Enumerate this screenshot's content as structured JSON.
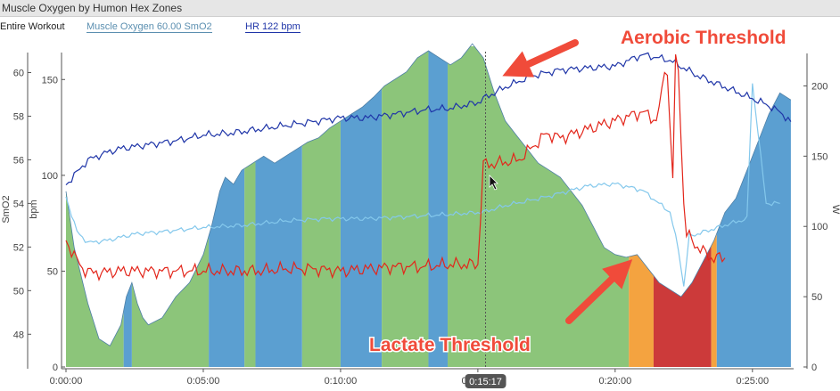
{
  "window_title": "Muscle Oxygen by Humon Hex Zones",
  "legend": {
    "entire": "Entire Workout",
    "muscle_oxygen": "Muscle Oxygen  60.00 SmO2",
    "hr": "HR  122 bpm"
  },
  "cursor_label": "0:15:17",
  "annotations": {
    "aerobic": "Aerobic Threshold",
    "lactate": "Lactate Threshold"
  },
  "colors": {
    "zone_green": "#8cc57a",
    "zone_blue": "#5b9fd1",
    "zone_orange": "#f4a340",
    "zone_red": "#cc3a3a",
    "hr_line": "#1f35a8",
    "smo2_line": "#e3261b",
    "light_line": "#84c8ec",
    "arrow": "#f04b3a"
  },
  "chart_data": {
    "type": "area",
    "x_ticks": [
      "0:00:00",
      "0:05:00",
      "0:10:00",
      "0:15:00",
      "0:20:00",
      "0:25:00"
    ],
    "x_range_min": [
      0,
      26.5
    ],
    "y_left_smo2": {
      "label": "SmO2",
      "ticks": [
        48,
        50,
        52,
        54,
        56,
        58,
        60
      ],
      "range": [
        46.5,
        61
      ]
    },
    "y_left_bpm": {
      "label": "bpm",
      "ticks": [
        0,
        50,
        100,
        150
      ],
      "range": [
        0,
        165
      ]
    },
    "y_right_w": {
      "label": "W",
      "ticks": [
        0,
        50,
        100,
        150,
        200
      ],
      "range": [
        0,
        225
      ]
    },
    "power_area": {
      "x": [
        0,
        0.3,
        0.8,
        1.2,
        1.6,
        2.0,
        2.2,
        2.4,
        2.6,
        2.8,
        3.0,
        3.5,
        4.0,
        4.5,
        5.0,
        5.3,
        5.6,
        5.8,
        6.1,
        6.4,
        6.8,
        7.2,
        7.6,
        8.0,
        8.4,
        8.8,
        9.2,
        9.6,
        10.0,
        10.4,
        10.8,
        11.2,
        11.6,
        12.0,
        12.4,
        12.8,
        13.2,
        13.6,
        14.0,
        14.4,
        14.8,
        15.2,
        15.6,
        16.0,
        16.4,
        16.8,
        17.2,
        17.6,
        18.0,
        18.4,
        18.8,
        19.2,
        19.6,
        20.0,
        20.4,
        20.8,
        21.2,
        21.6,
        22.0,
        22.4,
        22.8,
        23.2,
        23.6,
        24.0,
        24.4,
        24.8,
        25.2,
        25.6,
        26.0,
        26.4
      ],
      "w": [
        125,
        85,
        45,
        20,
        15,
        30,
        50,
        60,
        45,
        35,
        30,
        35,
        50,
        60,
        80,
        100,
        125,
        135,
        130,
        140,
        145,
        150,
        145,
        150,
        155,
        160,
        163,
        170,
        175,
        180,
        185,
        192,
        200,
        205,
        210,
        220,
        225,
        220,
        215,
        220,
        230,
        220,
        195,
        175,
        165,
        155,
        145,
        140,
        135,
        125,
        115,
        100,
        85,
        80,
        78,
        80,
        70,
        60,
        55,
        50,
        60,
        75,
        90,
        110,
        120,
        140,
        160,
        180,
        195,
        190
      ]
    },
    "zones": [
      {
        "from": 0.0,
        "to": 2.1,
        "color": "green"
      },
      {
        "from": 2.1,
        "to": 2.4,
        "color": "blue"
      },
      {
        "from": 2.4,
        "to": 5.2,
        "color": "green"
      },
      {
        "from": 5.2,
        "to": 6.5,
        "color": "blue"
      },
      {
        "from": 6.5,
        "to": 6.9,
        "color": "green"
      },
      {
        "from": 6.9,
        "to": 8.6,
        "color": "blue"
      },
      {
        "from": 8.6,
        "to": 10.0,
        "color": "green"
      },
      {
        "from": 10.0,
        "to": 11.5,
        "color": "blue"
      },
      {
        "from": 11.5,
        "to": 13.2,
        "color": "green"
      },
      {
        "from": 13.2,
        "to": 13.9,
        "color": "blue"
      },
      {
        "from": 13.9,
        "to": 20.5,
        "color": "green"
      },
      {
        "from": 20.5,
        "to": 21.4,
        "color": "orange"
      },
      {
        "from": 21.4,
        "to": 23.5,
        "color": "red"
      },
      {
        "from": 23.5,
        "to": 23.7,
        "color": "orange"
      },
      {
        "from": 23.7,
        "to": 26.5,
        "color": "blue"
      }
    ],
    "hr": {
      "x": [
        0,
        0.3,
        0.8,
        1.5,
        2.0,
        3.0,
        4.0,
        5.0,
        6.0,
        7.0,
        8.0,
        9.0,
        10.0,
        11.0,
        12.0,
        13.0,
        14.0,
        15.0,
        15.2,
        16.0,
        17.0,
        18.0,
        19.0,
        20.0,
        20.5,
        21.0,
        22.0,
        23.0,
        24.0,
        25.0,
        25.5,
        26.0,
        26.4
      ],
      "bpm": [
        95,
        100,
        108,
        112,
        114,
        116,
        118,
        121,
        122,
        124,
        126,
        128,
        130,
        130,
        132,
        134,
        135,
        138,
        140,
        146,
        152,
        155,
        156,
        157,
        160,
        163,
        160,
        152,
        146,
        140,
        137,
        133,
        128
      ]
    },
    "smo2": {
      "x": [
        0,
        0.3,
        0.6,
        1.0,
        2.0,
        3.0,
        4.0,
        5.0,
        6.0,
        7.0,
        8.0,
        9.0,
        10.0,
        11.0,
        12.0,
        13.0,
        14.0,
        15.0,
        15.2,
        15.5,
        16.5,
        17.5,
        18.0,
        18.5,
        19.5,
        20.5,
        21.0,
        21.5,
        21.7,
        21.8,
        21.9,
        22.0,
        22.1,
        22.2,
        22.3,
        22.4,
        22.5,
        22.6,
        23.0,
        23.5,
        24.0
      ],
      "value": [
        52.3,
        51.6,
        51.0,
        50.8,
        50.9,
        50.9,
        50.9,
        50.9,
        50.9,
        50.9,
        51.0,
        51.0,
        50.9,
        51.0,
        51.1,
        51.1,
        51.2,
        51.2,
        55.8,
        55.8,
        56.0,
        57.2,
        57.0,
        57.2,
        57.6,
        58.0,
        58.2,
        57.8,
        59.0,
        60.2,
        60.0,
        57.5,
        55.2,
        60.5,
        60.2,
        57.0,
        54.0,
        52.6,
        52.0,
        51.5,
        51.5
      ]
    },
    "light_series": {
      "x": [
        0,
        0.4,
        0.8,
        1.5,
        2.5,
        3.5,
        5.0,
        6.5,
        8.0,
        9.5,
        11.0,
        12.5,
        14.0,
        15.2,
        16.0,
        17.5,
        19.0,
        20.0,
        21.0,
        22.0,
        22.3,
        22.5,
        22.7,
        23.0,
        24.0,
        24.8,
        25.0,
        25.5,
        26.0
      ],
      "value": [
        54.3,
        52.7,
        52.2,
        52.3,
        52.6,
        52.7,
        52.9,
        53.0,
        53.2,
        53.3,
        53.3,
        53.4,
        53.5,
        53.6,
        53.9,
        54.3,
        54.8,
        54.9,
        54.6,
        53.6,
        51.9,
        50.2,
        52.5,
        52.6,
        53.0,
        53.3,
        59.5,
        54.0,
        54.0
      ]
    }
  }
}
